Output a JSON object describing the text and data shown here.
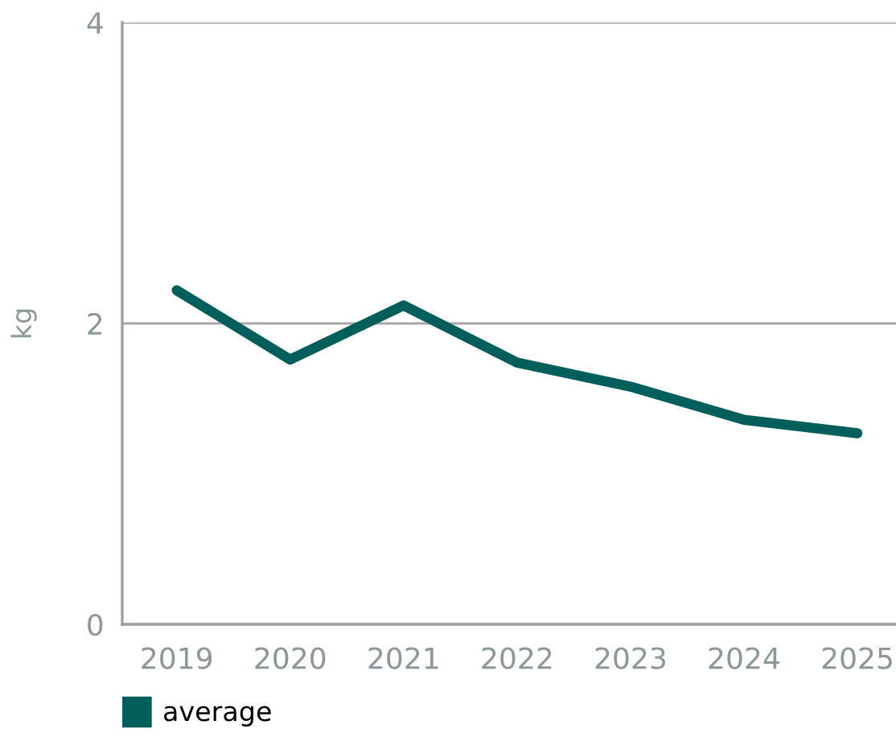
{
  "chart_data": {
    "type": "line",
    "ylabel": "kg",
    "categories": [
      "2019",
      "2020",
      "2021",
      "2022",
      "2023",
      "2024",
      "2025"
    ],
    "series": [
      {
        "name": "average",
        "color": "#005f5b",
        "values": [
          2.22,
          1.76,
          2.12,
          1.74,
          1.58,
          1.36,
          1.27
        ]
      }
    ],
    "ylim": [
      0,
      4
    ],
    "yticks": [
      0,
      2,
      4
    ],
    "grid": "y",
    "legend": "bottom left",
    "marker": "none",
    "line_style": "solid"
  }
}
